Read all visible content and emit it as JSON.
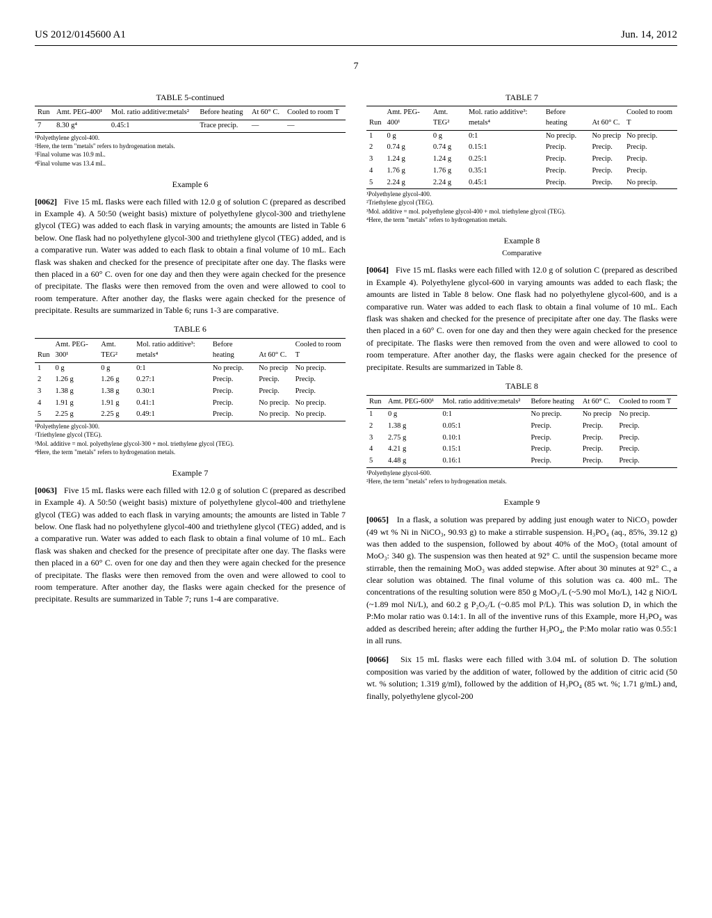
{
  "header": {
    "left": "US 2012/0145600 A1",
    "right": "Jun. 14, 2012",
    "page": "7"
  },
  "table5": {
    "title": "TABLE 5-continued",
    "headers": [
      "Run",
      "Amt. PEG-400¹",
      "Mol. ratio additive:metals²",
      "Before heating",
      "At 60° C.",
      "Cooled to room T"
    ],
    "rows": [
      [
        "7",
        "8.30 g⁴",
        "0.45:1",
        "Trace precip.",
        "—",
        "—"
      ]
    ],
    "footnotes": [
      "¹Polyethylene glycol-400.",
      "²Here, the term \"metals\" refers to hydrogenation metals.",
      "³Final volume was 10.9 mL.",
      "⁴Final volume was 13.4 mL."
    ]
  },
  "example6": {
    "heading": "Example 6",
    "para_num": "[0062]",
    "text": "Five 15 mL flasks were each filled with 12.0 g of solution C (prepared as described in Example 4). A 50:50 (weight basis) mixture of polyethylene glycol-300 and triethylene glycol (TEG) was added to each flask in varying amounts; the amounts are listed in Table 6 below. One flask had no polyethylene glycol-300 and triethylene glycol (TEG) added, and is a comparative run. Water was added to each flask to obtain a final volume of 10 mL. Each flask was shaken and checked for the presence of precipitate after one day. The flasks were then placed in a 60° C. oven for one day and then they were again checked for the presence of precipitate. The flasks were then removed from the oven and were allowed to cool to room temperature. After another day, the flasks were again checked for the presence of precipitate. Results are summarized in Table 6; runs 1-3 are comparative."
  },
  "table6": {
    "title": "TABLE 6",
    "headers": [
      "Run",
      "Amt. PEG-300¹",
      "Amt. TEG²",
      "Mol. ratio additive³: metals⁴",
      "Before heating",
      "At 60° C.",
      "Cooled to room T"
    ],
    "rows": [
      [
        "1",
        "0 g",
        "0 g",
        "0:1",
        "No precip.",
        "No precip",
        "No precip."
      ],
      [
        "2",
        "1.26 g",
        "1.26 g",
        "0.27:1",
        "Precip.",
        "Precip.",
        "Precip."
      ],
      [
        "3",
        "1.38 g",
        "1.38 g",
        "0.30:1",
        "Precip.",
        "Precip.",
        "Precip."
      ],
      [
        "4",
        "1.91 g",
        "1.91 g",
        "0.41:1",
        "Precip.",
        "No precip.",
        "No precip."
      ],
      [
        "5",
        "2.25 g",
        "2.25 g",
        "0.49:1",
        "Precip.",
        "No precip.",
        "No precip."
      ]
    ],
    "footnotes": [
      "¹Polyethylene glycol-300.",
      "²Triethylene glycol (TEG).",
      "³Mol. additive = mol. polyethylene glycol-300 + mol. triethylene glycol (TEG).",
      "⁴Here, the term \"metals\" refers to hydrogenation metals."
    ]
  },
  "example7": {
    "heading": "Example 7",
    "para_num": "[0063]",
    "text": "Five 15 mL flasks were each filled with 12.0 g of solution C (prepared as described in Example 4). A 50:50 (weight basis) mixture of polyethylene glycol-400 and triethylene glycol (TEG) was added to each flask in varying amounts; the amounts are listed in Table 7 below. One flask had no polyethylene glycol-400 and triethylene glycol (TEG) added, and is a comparative run. Water was added to each flask to obtain a final volume of 10 mL. Each flask was shaken and checked for the presence of precipitate after one day. The flasks were then placed in a 60° C. oven for one day and then they were again checked for the presence of precipitate. The flasks were then removed from the oven and were allowed to cool to room temperature. After another day, the flasks were again checked for the presence of precipitate. Results are summarized in Table 7; runs 1-4 are comparative."
  },
  "table7": {
    "title": "TABLE 7",
    "headers": [
      "Run",
      "Amt. PEG-400¹",
      "Amt. TEG²",
      "Mol. ratio additive³: metals⁴",
      "Before heating",
      "At 60° C.",
      "Cooled to room T"
    ],
    "rows": [
      [
        "1",
        "0 g",
        "0 g",
        "0:1",
        "No precip.",
        "No precip",
        "No precip."
      ],
      [
        "2",
        "0.74 g",
        "0.74 g",
        "0.15:1",
        "Precip.",
        "Precip.",
        "Precip."
      ],
      [
        "3",
        "1.24 g",
        "1.24 g",
        "0.25:1",
        "Precip.",
        "Precip.",
        "Precip."
      ],
      [
        "4",
        "1.76 g",
        "1.76 g",
        "0.35:1",
        "Precip.",
        "Precip.",
        "Precip."
      ],
      [
        "5",
        "2.24 g",
        "2.24 g",
        "0.45:1",
        "Precip.",
        "Precip.",
        "No precip."
      ]
    ],
    "footnotes": [
      "¹Polyethylene glycol-400.",
      "²Triethylene glycol (TEG).",
      "³Mol. additive = mol. polyethylene glycol-400 + mol. triethylene glycol (TEG).",
      "⁴Here, the term \"metals\" refers to hydrogenation metals."
    ]
  },
  "example8": {
    "heading": "Example 8",
    "sub": "Comparative",
    "para_num": "[0064]",
    "text": "Five 15 mL flasks were each filled with 12.0 g of solution C (prepared as described in Example 4). Polyethylene glycol-600 in varying amounts was added to each flask; the amounts are listed in Table 8 below. One flask had no polyethylene glycol-600, and is a comparative run. Water was added to each flask to obtain a final volume of 10 mL. Each flask was shaken and checked for the presence of precipitate after one day. The flasks were then placed in a 60° C. oven for one day and then they were again checked for the presence of precipitate. The flasks were then removed from the oven and were allowed to cool to room temperature. After another day, the flasks were again checked for the presence of precipitate. Results are summarized in Table 8."
  },
  "table8": {
    "title": "TABLE 8",
    "headers": [
      "Run",
      "Amt. PEG-600¹",
      "Mol. ratio additive:metals²",
      "Before heating",
      "At 60° C.",
      "Cooled to room T"
    ],
    "rows": [
      [
        "1",
        "0 g",
        "0:1",
        "No precip.",
        "No precip",
        "No precip."
      ],
      [
        "2",
        "1.38 g",
        "0.05:1",
        "Precip.",
        "Precip.",
        "Precip."
      ],
      [
        "3",
        "2.75 g",
        "0.10:1",
        "Precip.",
        "Precip.",
        "Precip."
      ],
      [
        "4",
        "4.21 g",
        "0.15:1",
        "Precip.",
        "Precip.",
        "Precip."
      ],
      [
        "5",
        "4.48 g",
        "0.16:1",
        "Precip.",
        "Precip.",
        "Precip."
      ]
    ],
    "footnotes": [
      "¹Polyethylene glycol-600.",
      "²Here, the term \"metals\" refers to hydrogenation metals."
    ]
  },
  "example9": {
    "heading": "Example 9",
    "para1_num": "[0065]",
    "para1": "In a flask, a solution was prepared by adding just enough water to NiCO₃ powder (49 wt % Ni in NiCO₃, 90.93 g) to make a stirrable suspension. H₃PO₄ (aq., 85%, 39.12 g) was then added to the suspension, followed by about 40% of the MoO₃ (total amount of MoO₃: 340 g). The suspension was then heated at 92° C. until the suspension became more stirrable, then the remaining MoO₃ was added stepwise. After about 30 minutes at 92° C., a clear solution was obtained. The final volume of this solution was ca. 400 mL. The concentrations of the resulting solution were 850 g MoO₃/L (~5.90 mol Mo/L), 142 g NiO/L (~1.89 mol Ni/L), and 60.2 g P₂O₅/L (~0.85 mol P/L). This was solution D, in which the P:Mo molar ratio was 0.14:1. In all of the inventive runs of this Example, more H₃PO₄ was added as described herein; after adding the further H₃PO₄, the P:Mo molar ratio was 0.55:1 in all runs.",
    "para2_num": "[0066]",
    "para2": "Six 15 mL flasks were each filled with 3.04 mL of solution D. The solution composition was varied by the addition of water, followed by the addition of citric acid (50 wt. % solution; 1.319 g/ml), followed by the addition of H₃PO₄ (85 wt. %; 1.71 g/mL) and, finally, polyethylene glycol-200"
  }
}
